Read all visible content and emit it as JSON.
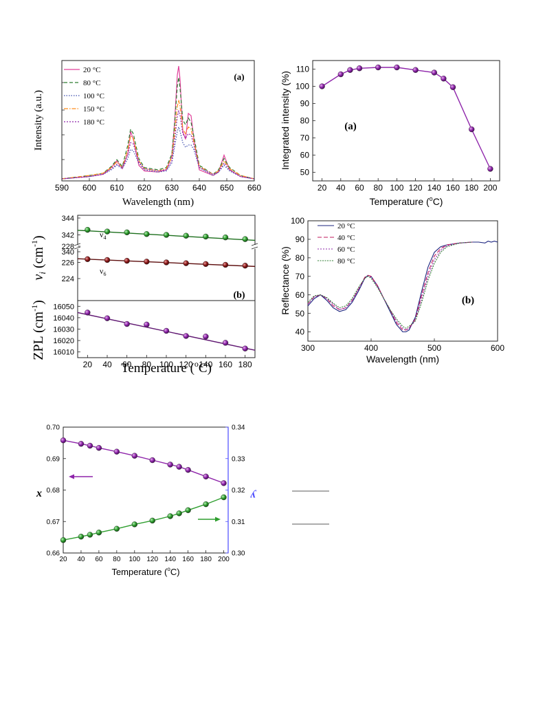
{
  "chart_data": [
    {
      "id": "spectra",
      "type": "line",
      "panel_label": "(a)",
      "xlabel": "Wavelength (nm)",
      "ylabel": "Intensity (a.u.)",
      "xlim": [
        590,
        660
      ],
      "xticks": [
        590,
        600,
        610,
        620,
        630,
        640,
        650,
        660
      ],
      "legend_position": "top-left",
      "grid": false,
      "series": [
        {
          "name": "20 °C",
          "color": "#e0409a",
          "dash": "",
          "x": [
            590,
            600,
            605,
            608,
            610,
            612,
            614,
            615,
            616,
            618,
            620,
            625,
            628,
            630,
            631,
            632,
            632.5,
            633,
            634,
            635,
            636,
            637,
            638,
            640,
            645,
            647,
            649,
            651,
            655,
            660
          ],
          "y": [
            0,
            0.02,
            0.04,
            0.1,
            0.16,
            0.09,
            0.22,
            0.42,
            0.35,
            0.12,
            0.07,
            0.06,
            0.08,
            0.2,
            0.5,
            0.92,
            1.0,
            0.88,
            0.42,
            0.35,
            0.58,
            0.56,
            0.36,
            0.08,
            0.03,
            0.06,
            0.21,
            0.08,
            0.02,
            0
          ]
        },
        {
          "name": "80 °C",
          "color": "#2e7d32",
          "dash": "5,3",
          "x": [
            590,
            600,
            605,
            608,
            610,
            612,
            614,
            615,
            616,
            618,
            620,
            625,
            628,
            630,
            631,
            632,
            632.5,
            633,
            634,
            635,
            636,
            637,
            638,
            640,
            645,
            647,
            649,
            651,
            655,
            660
          ],
          "y": [
            0,
            0.03,
            0.05,
            0.11,
            0.17,
            0.11,
            0.3,
            0.44,
            0.4,
            0.18,
            0.1,
            0.08,
            0.1,
            0.22,
            0.48,
            0.82,
            0.9,
            0.8,
            0.52,
            0.48,
            0.54,
            0.5,
            0.38,
            0.12,
            0.04,
            0.08,
            0.18,
            0.1,
            0.03,
            0
          ]
        },
        {
          "name": "100 °C",
          "color": "#3949ab",
          "dash": "1.5,2",
          "x": [
            590,
            600,
            605,
            608,
            610,
            612,
            614,
            615,
            616,
            618,
            620,
            625,
            628,
            630,
            631,
            632,
            632.5,
            633,
            634,
            635,
            636,
            637,
            638,
            640,
            645,
            647,
            649,
            651,
            655,
            660
          ],
          "y": [
            0,
            0.02,
            0.04,
            0.08,
            0.12,
            0.09,
            0.18,
            0.26,
            0.25,
            0.14,
            0.08,
            0.06,
            0.07,
            0.14,
            0.28,
            0.42,
            0.46,
            0.42,
            0.32,
            0.28,
            0.3,
            0.3,
            0.26,
            0.1,
            0.03,
            0.06,
            0.12,
            0.07,
            0.02,
            0
          ]
        },
        {
          "name": "150 °C",
          "color": "#ff8c1a",
          "dash": "6,2,1.5,2",
          "x": [
            590,
            600,
            605,
            608,
            610,
            612,
            614,
            615,
            616,
            618,
            620,
            625,
            628,
            630,
            631,
            632,
            632.5,
            633,
            634,
            635,
            636,
            637,
            638,
            640,
            645,
            647,
            649,
            651,
            655,
            660
          ],
          "y": [
            0,
            0.03,
            0.05,
            0.1,
            0.15,
            0.1,
            0.26,
            0.38,
            0.36,
            0.16,
            0.09,
            0.07,
            0.09,
            0.19,
            0.4,
            0.64,
            0.7,
            0.64,
            0.44,
            0.4,
            0.46,
            0.44,
            0.33,
            0.11,
            0.04,
            0.07,
            0.16,
            0.09,
            0.03,
            0
          ]
        },
        {
          "name": "180 °C",
          "color": "#8e24aa",
          "dash": "2,2",
          "x": [
            590,
            600,
            605,
            608,
            610,
            612,
            614,
            615,
            616,
            618,
            620,
            625,
            628,
            630,
            631,
            632,
            632.5,
            633,
            634,
            635,
            636,
            637,
            638,
            640,
            645,
            647,
            649,
            651,
            655,
            660
          ],
          "y": [
            0,
            0.02,
            0.04,
            0.09,
            0.13,
            0.1,
            0.22,
            0.32,
            0.31,
            0.15,
            0.09,
            0.07,
            0.08,
            0.16,
            0.34,
            0.55,
            0.6,
            0.56,
            0.4,
            0.36,
            0.4,
            0.39,
            0.3,
            0.1,
            0.04,
            0.06,
            0.14,
            0.08,
            0.02,
            0
          ]
        }
      ]
    },
    {
      "id": "integrated",
      "type": "line",
      "panel_label": "(a)",
      "xlabel": "Temperature (",
      "xlabel_sup": "o",
      "xlabel_tail": "C)",
      "ylabel": "Integrated intensity (%)",
      "xlim": [
        10,
        210
      ],
      "ylim": [
        45,
        115
      ],
      "xticks": [
        20,
        40,
        60,
        80,
        100,
        120,
        140,
        160,
        180,
        200
      ],
      "yticks": [
        50,
        60,
        70,
        80,
        90,
        100,
        110
      ],
      "grid": false,
      "series": [
        {
          "color": "#8e24aa",
          "x": [
            20,
            40,
            50,
            60,
            80,
            100,
            120,
            140,
            150,
            160,
            180,
            200
          ],
          "y": [
            100,
            107,
            109.5,
            110.5,
            111,
            111,
            109.5,
            108,
            104.5,
            99.5,
            75,
            52
          ]
        }
      ]
    },
    {
      "id": "raman",
      "type": "scatter",
      "panel_label": "(b)",
      "xlabel": "Temperature (",
      "xlabel_sup": "o",
      "xlabel_tail": "C)",
      "xlim": [
        10,
        190
      ],
      "xticks": [
        20,
        40,
        60,
        80,
        100,
        120,
        140,
        160,
        180
      ],
      "upper": {
        "ylabel": "ν",
        "ylabel_sub": "i",
        "ylabel_tail": " (cm",
        "ylabel_sup": "-1",
        "ylabel_close": ")",
        "yticks": [
          224,
          226,
          228,
          340,
          342,
          344
        ],
        "series": [
          {
            "label": "ν",
            "label_sub": "4",
            "color": "#2e9e2e",
            "line": "#1b6e1b",
            "x": [
              20,
              40,
              60,
              80,
              100,
              120,
              140,
              160,
              180
            ],
            "y": [
              342.6,
              342.4,
              342.3,
              342.1,
              342.0,
              341.9,
              341.8,
              341.7,
              341.5
            ],
            "fit": [
              342.55,
              341.35
            ]
          },
          {
            "label": "ν",
            "label_sub": "6",
            "color": "#8b1a1a",
            "line": "#5e0f0f",
            "x": [
              20,
              40,
              60,
              80,
              100,
              120,
              140,
              160,
              180
            ],
            "y": [
              226.4,
              226.3,
              226.2,
              226.1,
              226.0,
              225.9,
              225.8,
              225.7,
              225.6
            ],
            "fit": [
              226.45,
              225.5
            ]
          }
        ]
      },
      "lower": {
        "ylabel": "ZPL (cm",
        "ylabel_sup": "-1",
        "ylabel_close": ")",
        "yticks": [
          16010,
          16020,
          16030,
          16040,
          16050
        ],
        "series": [
          {
            "color": "#8e24aa",
            "line": "#5e1570",
            "x": [
              20,
              40,
              60,
              80,
              100,
              120,
              140,
              160,
              180
            ],
            "y": [
              16044.5,
              16039.5,
              16034.5,
              16034,
              16028.5,
              16024,
              16023.5,
              16018,
              16013
            ],
            "fit": [
              16044.5,
              16011.5
            ]
          }
        ]
      }
    },
    {
      "id": "reflectance",
      "type": "line",
      "panel_label": "(b)",
      "xlabel": "Wavelength (nm)",
      "ylabel": "Reflectance (%)",
      "xlim": [
        300,
        600
      ],
      "ylim": [
        35,
        100
      ],
      "xticks": [
        300,
        400,
        500,
        600
      ],
      "yticks": [
        40,
        50,
        60,
        70,
        80,
        90,
        100
      ],
      "legend_position": "top-left",
      "grid": false,
      "series": [
        {
          "name": "20 °C",
          "color": "#1a237e",
          "dash": "",
          "x": [
            300,
            310,
            320,
            330,
            340,
            350,
            360,
            370,
            380,
            390,
            395,
            400,
            410,
            420,
            430,
            440,
            450,
            455,
            460,
            470,
            480,
            490,
            500,
            510,
            520,
            540,
            560,
            570,
            580,
            585,
            590,
            595,
            600
          ],
          "y": [
            54,
            58,
            60,
            57,
            53,
            51,
            52,
            56,
            62,
            69,
            70.5,
            70,
            65,
            58,
            51,
            44,
            40,
            40,
            41,
            48,
            62,
            75,
            83,
            86,
            87,
            88,
            88.5,
            88.5,
            88,
            89,
            88.5,
            89,
            88.5
          ]
        },
        {
          "name": "40 °C",
          "color": "#c2185b",
          "dash": "6,3",
          "x": [
            300,
            310,
            320,
            330,
            340,
            350,
            360,
            370,
            380,
            390,
            395,
            400,
            410,
            420,
            430,
            440,
            450,
            455,
            460,
            470,
            480,
            490,
            500,
            510,
            520,
            540,
            560
          ],
          "y": [
            55,
            59,
            60,
            58,
            54,
            52,
            53,
            57,
            63,
            69.5,
            70.5,
            70,
            65,
            58,
            52,
            45,
            41,
            41,
            42,
            47,
            60,
            72,
            81,
            85,
            87,
            88,
            88.5
          ]
        },
        {
          "name": "60 °C",
          "color": "#8e24aa",
          "dash": "2,2",
          "x": [
            300,
            310,
            320,
            330,
            340,
            350,
            360,
            370,
            380,
            390,
            395,
            400,
            410,
            420,
            430,
            440,
            450,
            455,
            460,
            470,
            480,
            490,
            500,
            510,
            520,
            540,
            560
          ],
          "y": [
            55,
            59,
            60,
            58,
            55,
            52,
            53,
            57,
            63,
            69,
            70,
            69.5,
            64.5,
            58,
            52,
            46,
            42,
            41,
            42,
            46,
            58,
            70,
            79,
            84,
            86.5,
            88,
            88.5
          ]
        },
        {
          "name": "80 °C",
          "color": "#2e7d32",
          "dash": "2,1.5",
          "x": [
            300,
            310,
            320,
            330,
            340,
            350,
            360,
            370,
            380,
            390,
            395,
            400,
            410,
            420,
            430,
            440,
            450,
            455,
            460,
            470,
            480,
            490,
            500,
            510,
            520,
            540,
            560
          ],
          "y": [
            56,
            59.5,
            60,
            58.5,
            55.5,
            53,
            54,
            58,
            64,
            69,
            70,
            69,
            64,
            58,
            52,
            47,
            43,
            42,
            43,
            46,
            56,
            68,
            77,
            83,
            86,
            88,
            88.5
          ]
        }
      ]
    },
    {
      "id": "chromaticity",
      "type": "line",
      "xlabel": "Temperature (",
      "xlabel_sup": "o",
      "xlabel_tail": "C)",
      "ylabel_left": "x",
      "ylabel_right": "y",
      "xlim": [
        20,
        205
      ],
      "ylim_left": [
        0.66,
        0.7
      ],
      "ylim_right": [
        0.3,
        0.34
      ],
      "xticks": [
        20,
        40,
        60,
        80,
        100,
        120,
        140,
        160,
        180,
        200
      ],
      "yticks_left": [
        "0.66",
        "0.67",
        "0.68",
        "0.69",
        "0.70"
      ],
      "yticks_right": [
        "0.30",
        "0.31",
        "0.32",
        "0.33",
        "0.34"
      ],
      "right_axis_color": "#4a4aff",
      "grid": false,
      "series": [
        {
          "axis": "left",
          "color": "#8e24aa",
          "x": [
            20,
            40,
            50,
            60,
            80,
            100,
            120,
            140,
            150,
            160,
            180,
            200
          ],
          "y": [
            0.6958,
            0.6947,
            0.6941,
            0.6934,
            0.6922,
            0.6909,
            0.6895,
            0.6881,
            0.6874,
            0.6864,
            0.6843,
            0.6822
          ]
        },
        {
          "axis": "right",
          "color": "#2e9e2e",
          "x": [
            20,
            40,
            50,
            60,
            80,
            100,
            120,
            140,
            150,
            160,
            180,
            200
          ],
          "y": [
            0.3041,
            0.3052,
            0.3058,
            0.3065,
            0.3077,
            0.3091,
            0.3103,
            0.3117,
            0.3126,
            0.3136,
            0.3155,
            0.3177
          ]
        }
      ]
    }
  ]
}
